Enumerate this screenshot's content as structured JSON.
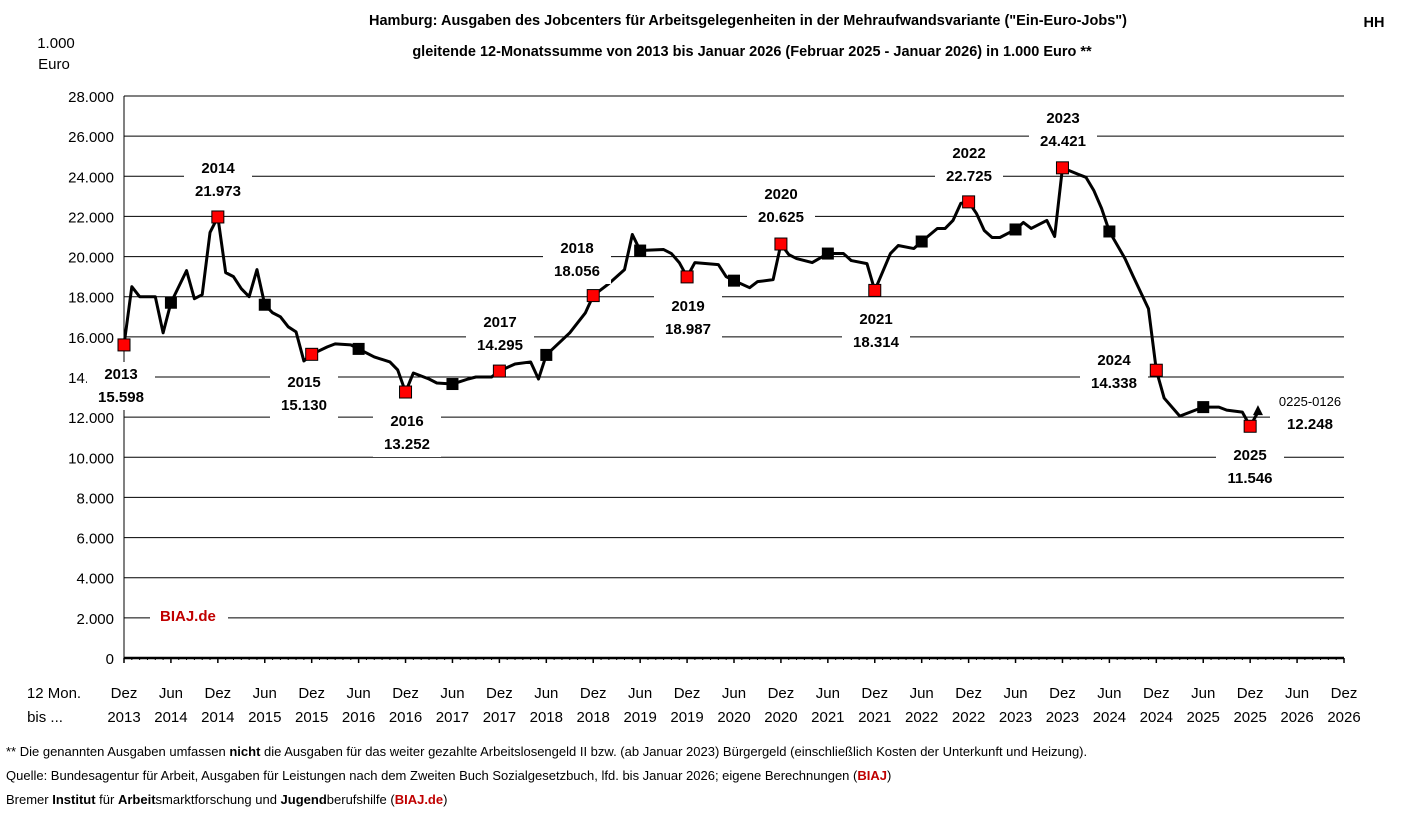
{
  "corner_tag": "HH",
  "chart_data": {
    "type": "line",
    "title": "Hamburg: Ausgaben des Jobcenters für Arbeitsgelegenheiten in der Mehraufwandsvariante (\"Ein-Euro-Jobs\")",
    "subtitle": "gleitende 12-Monatssumme von 2013 bis Januar 2026 (Februar 2025 - Januar 2026) in 1.000 Euro **",
    "ylabel": [
      "1.000",
      "Euro"
    ],
    "xlabel": [
      "12 Mon.",
      "bis ..."
    ],
    "ylim": [
      0,
      28000
    ],
    "xlim": [
      "2013-12",
      "2026-12"
    ],
    "grid": true,
    "y_ticks": [
      "0",
      "2.000",
      "4.000",
      "6.000",
      "8.000",
      "10.000",
      "12.000",
      "14.000",
      "16.000",
      "18.000",
      "20.000",
      "22.000",
      "24.000",
      "26.000",
      "28.000"
    ],
    "x_ticks": [
      [
        "Dez",
        "2013"
      ],
      [
        "Jun",
        "2014"
      ],
      [
        "Dez",
        "2014"
      ],
      [
        "Jun",
        "2015"
      ],
      [
        "Dez",
        "2015"
      ],
      [
        "Jun",
        "2016"
      ],
      [
        "Dez",
        "2016"
      ],
      [
        "Jun",
        "2017"
      ],
      [
        "Dez",
        "2017"
      ],
      [
        "Jun",
        "2018"
      ],
      [
        "Dez",
        "2018"
      ],
      [
        "Jun",
        "2019"
      ],
      [
        "Dez",
        "2019"
      ],
      [
        "Jun",
        "2020"
      ],
      [
        "Dez",
        "2020"
      ],
      [
        "Jun",
        "2021"
      ],
      [
        "Dez",
        "2021"
      ],
      [
        "Jun",
        "2022"
      ],
      [
        "Dez",
        "2022"
      ],
      [
        "Jun",
        "2023"
      ],
      [
        "Dez",
        "2023"
      ],
      [
        "Jun",
        "2024"
      ],
      [
        "Dez",
        "2024"
      ],
      [
        "Jun",
        "2025"
      ],
      [
        "Dez",
        "2025"
      ],
      [
        "Jun",
        "2026"
      ],
      [
        "Dez",
        "2026"
      ]
    ],
    "series": [
      {
        "color": "#000000",
        "points": [
          [
            "2013-12",
            15598
          ],
          [
            "2014-01",
            18500
          ],
          [
            "2014-02",
            18000
          ],
          [
            "2014-04",
            18000
          ],
          [
            "2014-05",
            16200
          ],
          [
            "2014-06",
            17700
          ],
          [
            "2014-08",
            19300
          ],
          [
            "2014-09",
            17900
          ],
          [
            "2014-10",
            18100
          ],
          [
            "2014-11",
            21200
          ],
          [
            "2014-12",
            21973
          ],
          [
            "2015-01",
            19200
          ],
          [
            "2015-02",
            19000
          ],
          [
            "2015-03",
            18400
          ],
          [
            "2015-04",
            18000
          ],
          [
            "2015-05",
            19350
          ],
          [
            "2015-06",
            17600
          ],
          [
            "2015-07",
            17200
          ],
          [
            "2015-08",
            17000
          ],
          [
            "2015-09",
            16500
          ],
          [
            "2015-10",
            16250
          ],
          [
            "2015-11",
            14800
          ],
          [
            "2015-12",
            15130
          ],
          [
            "2016-02",
            15500
          ],
          [
            "2016-03",
            15650
          ],
          [
            "2016-05",
            15600
          ],
          [
            "2016-06",
            15400
          ],
          [
            "2016-08",
            15000
          ],
          [
            "2016-10",
            14750
          ],
          [
            "2016-11",
            14350
          ],
          [
            "2016-12",
            13252
          ],
          [
            "2017-01",
            14200
          ],
          [
            "2017-03",
            13900
          ],
          [
            "2017-04",
            13700
          ],
          [
            "2017-06",
            13650
          ],
          [
            "2017-08",
            13900
          ],
          [
            "2017-09",
            14000
          ],
          [
            "2017-11",
            14000
          ],
          [
            "2017-12",
            14295
          ],
          [
            "2018-02",
            14650
          ],
          [
            "2018-04",
            14750
          ],
          [
            "2018-05",
            13900
          ],
          [
            "2018-06",
            15100
          ],
          [
            "2018-09",
            16200
          ],
          [
            "2018-11",
            17200
          ],
          [
            "2018-12",
            18056
          ],
          [
            "2019-02",
            18650
          ],
          [
            "2019-04",
            19350
          ],
          [
            "2019-05",
            21100
          ],
          [
            "2019-06",
            20300
          ],
          [
            "2019-09",
            20350
          ],
          [
            "2019-10",
            20150
          ],
          [
            "2019-11",
            19700
          ],
          [
            "2019-12",
            18987
          ],
          [
            "2020-01",
            19700
          ],
          [
            "2020-04",
            19600
          ],
          [
            "2020-05",
            19000
          ],
          [
            "2020-06",
            18800
          ],
          [
            "2020-08",
            18450
          ],
          [
            "2020-09",
            18750
          ],
          [
            "2020-11",
            18850
          ],
          [
            "2020-12",
            20625
          ],
          [
            "2021-01",
            20100
          ],
          [
            "2021-02",
            19900
          ],
          [
            "2021-04",
            19700
          ],
          [
            "2021-06",
            20150
          ],
          [
            "2021-08",
            20150
          ],
          [
            "2021-09",
            19800
          ],
          [
            "2021-11",
            19650
          ],
          [
            "2021-12",
            18314
          ],
          [
            "2022-02",
            20150
          ],
          [
            "2022-03",
            20550
          ],
          [
            "2022-05",
            20400
          ],
          [
            "2022-06",
            20750
          ],
          [
            "2022-08",
            21400
          ],
          [
            "2022-09",
            21400
          ],
          [
            "2022-10",
            21800
          ],
          [
            "2022-11",
            22650
          ],
          [
            "2022-12",
            22725
          ],
          [
            "2023-01",
            22150
          ],
          [
            "2023-02",
            21300
          ],
          [
            "2023-03",
            20950
          ],
          [
            "2023-04",
            20950
          ],
          [
            "2023-06",
            21350
          ],
          [
            "2023-07",
            21700
          ],
          [
            "2023-08",
            21400
          ],
          [
            "2023-10",
            21800
          ],
          [
            "2023-11",
            21000
          ],
          [
            "2023-12",
            24421
          ],
          [
            "2024-02",
            24100
          ],
          [
            "2024-03",
            23950
          ],
          [
            "2024-04",
            23300
          ],
          [
            "2024-05",
            22400
          ],
          [
            "2024-06",
            21250
          ],
          [
            "2024-08",
            19900
          ],
          [
            "2024-09",
            19050
          ],
          [
            "2024-11",
            17400
          ],
          [
            "2024-12",
            14338
          ],
          [
            "2025-01",
            12950
          ],
          [
            "2025-03",
            12050
          ],
          [
            "2025-06",
            12500
          ],
          [
            "2025-08",
            12500
          ],
          [
            "2025-09",
            12350
          ],
          [
            "2025-11",
            12250
          ],
          [
            "2025-12",
            11546
          ],
          [
            "2026-01",
            12248
          ]
        ]
      }
    ],
    "markers": {
      "december_color": "#ff0000",
      "june_color": "#000000",
      "latest_marker": "triangle"
    },
    "annotations": [
      {
        "year": "2013",
        "value": "15.598"
      },
      {
        "year": "2014",
        "value": "21.973"
      },
      {
        "year": "2015",
        "value": "15.130"
      },
      {
        "year": "2016",
        "value": "13.252"
      },
      {
        "year": "2017",
        "value": "14.295"
      },
      {
        "year": "2018",
        "value": "18.056"
      },
      {
        "year": "2019",
        "value": "18.987"
      },
      {
        "year": "2020",
        "value": "20.625"
      },
      {
        "year": "2021",
        "value": "18.314"
      },
      {
        "year": "2022",
        "value": "22.725"
      },
      {
        "year": "2023",
        "value": "24.421"
      },
      {
        "year": "2024",
        "value": "14.338"
      },
      {
        "year": "2025",
        "value": "11.546"
      },
      {
        "year": "0225-0126",
        "value": "12.248"
      }
    ],
    "watermark": "BIAJ.de",
    "watermark_color": "#c00000"
  },
  "footnotes": [
    [
      {
        "t": "** Die genannten Ausgaben umfassen ",
        "s": ""
      },
      {
        "t": "nicht",
        "s": "b"
      },
      {
        "t": " die Ausgaben für das weiter gezahlte Arbeitslosengeld II bzw. (ab Januar 2023) Bürgergeld (einschließlich Kosten der Unterkunft und Heizung).",
        "s": ""
      }
    ],
    [
      {
        "t": "Quelle: Bundesagentur für Arbeit, Ausgaben für Leistungen nach dem Zweiten Buch Sozialgesetzbuch, lfd. bis Januar 2026; eigene Berechnungen (",
        "s": ""
      },
      {
        "t": "BIAJ",
        "s": "r"
      },
      {
        "t": ")",
        "s": ""
      }
    ],
    [
      {
        "t": "Bremer ",
        "s": ""
      },
      {
        "t": "Institut",
        "s": "b"
      },
      {
        "t": " für ",
        "s": ""
      },
      {
        "t": "Arbeit",
        "s": "b"
      },
      {
        "t": "smarktforschung und ",
        "s": ""
      },
      {
        "t": "Jugend",
        "s": "b"
      },
      {
        "t": "berufshilfe (",
        "s": ""
      },
      {
        "t": "BIAJ.de",
        "s": "r"
      },
      {
        "t": ")",
        "s": ""
      }
    ]
  ]
}
